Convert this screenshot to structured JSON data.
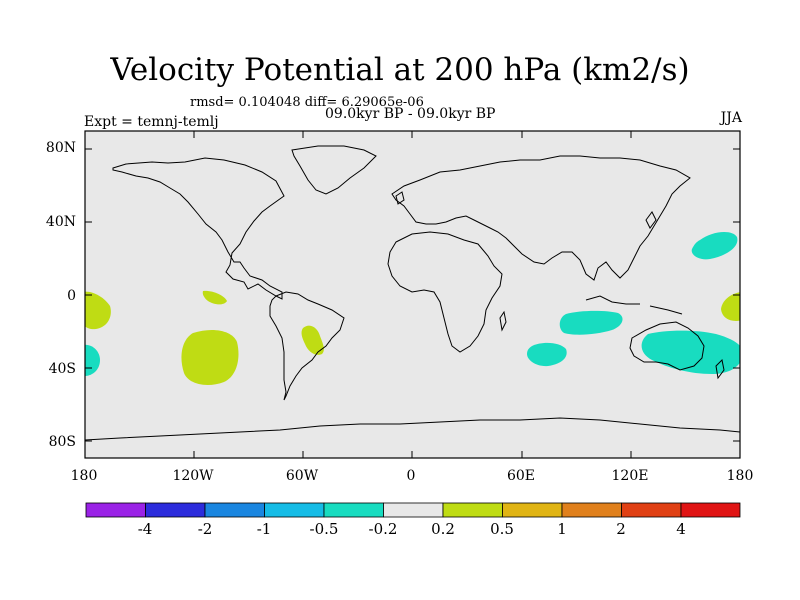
{
  "title": "Velocity Potential at 200 hPa (km2/s)",
  "stats": "rmsd= 0.104048 diff= 6.29065e-06",
  "period": "09.0kyr BP - 09.0kyr BP",
  "expt": "Expt = temnj-temlj",
  "season": "JJA",
  "map": {
    "background_color": "#e8e8e8",
    "lat_labels": [
      "80N",
      "40N",
      "0",
      "40S",
      "80S"
    ],
    "lon_labels": [
      "180",
      "120W",
      "60W",
      "0",
      "60E",
      "120E",
      "180"
    ]
  },
  "colorbar": {
    "colors": [
      "#9a22e6",
      "#2c2cdc",
      "#1a86e0",
      "#16bce6",
      "#18dcc0",
      "#e8e8e8",
      "#bfdc14",
      "#e0b414",
      "#e0801c",
      "#e04014",
      "#e01414"
    ],
    "labels": [
      "-4",
      "-2",
      "-1",
      "-0.5",
      "-0.2",
      "0.2",
      "0.5",
      "1",
      "2",
      "4"
    ]
  }
}
